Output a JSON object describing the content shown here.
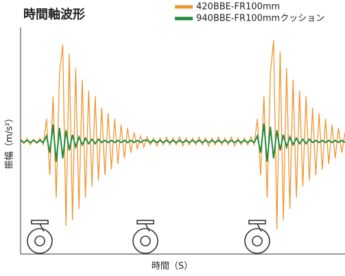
{
  "chart_data": {
    "type": "line",
    "title": "時間軸波形",
    "x_label": "時間（S）",
    "y_label": "振幅（m/s²）",
    "xlim": [
      0,
      100
    ],
    "ylim": [
      -10,
      10
    ],
    "legend": "top-right",
    "x": [
      0,
      1,
      2,
      3,
      4,
      5,
      6,
      7,
      8,
      9,
      10,
      11,
      12,
      13,
      14,
      15,
      16,
      17,
      18,
      19,
      20,
      21,
      22,
      23,
      24,
      25,
      26,
      27,
      28,
      29,
      30,
      31,
      32,
      33,
      34,
      35,
      36,
      37,
      38,
      39,
      40,
      41,
      42,
      43,
      44,
      45,
      46,
      47,
      48,
      49,
      50,
      51,
      52,
      53,
      54,
      55,
      56,
      57,
      58,
      59,
      60,
      61,
      62,
      63,
      64,
      65,
      66,
      67,
      68,
      69,
      70,
      71,
      72,
      73,
      74,
      75,
      76,
      77,
      78,
      79,
      80,
      81,
      82,
      83,
      84,
      85,
      86,
      87,
      88,
      89,
      90,
      91,
      92,
      93,
      94,
      95,
      96,
      97,
      98,
      99,
      100
    ],
    "series": [
      {
        "name": "420BBE-FR100mm",
        "color": "#ef9530",
        "values": [
          0.3,
          -0.2,
          0.3,
          -0.3,
          0.2,
          -0.2,
          0.3,
          -0.3,
          2,
          -3,
          4,
          -5,
          6,
          8.6,
          -7.5,
          7.8,
          -7,
          6.5,
          -6,
          5.5,
          -5,
          4.5,
          -4,
          4,
          -3.5,
          3,
          -3,
          2.5,
          -2.5,
          2,
          -2,
          1.5,
          -1.5,
          1.2,
          -1,
          0.8,
          -0.7,
          0.5,
          -0.5,
          0.4,
          -0.3,
          0.3,
          -0.4,
          0.3,
          -0.3,
          0.4,
          -0.3,
          0.3,
          -0.3,
          0.4,
          -0.4,
          0.3,
          -0.3,
          0.3,
          -0.3,
          0.4,
          -0.3,
          0.3,
          -0.4,
          0.3,
          -0.3,
          0.4,
          -0.3,
          0.3,
          -0.3,
          0.4,
          -0.4,
          0.3,
          -0.3,
          0.3,
          -0.3,
          0.4,
          -0.3,
          2,
          -3,
          4,
          -5,
          6,
          9,
          -7.8,
          8,
          -7,
          6.5,
          -6,
          5.5,
          -5,
          4.5,
          -4,
          4,
          -3.5,
          3,
          -3,
          2.5,
          -2.5,
          2,
          -2,
          1.5,
          -1.5,
          1.2,
          -1,
          0.8
        ]
      },
      {
        "name": "940BBE-FR100mmクッション",
        "color": "#1f8a3e",
        "values": [
          0.1,
          -0.1,
          0.1,
          -0.1,
          0.1,
          -0.1,
          0.1,
          -0.1,
          0.5,
          -1,
          1.5,
          -1.8,
          1.2,
          -1.5,
          1,
          -0.8,
          0.6,
          -0.5,
          0.4,
          -0.3,
          0.3,
          -0.2,
          0.2,
          -0.2,
          0.2,
          -0.1,
          0.1,
          -0.1,
          0.1,
          -0.1,
          0.1,
          -0.1,
          0.1,
          -0.1,
          0.1,
          -0.1,
          0.1,
          -0.1,
          0.1,
          0.1,
          -0.1,
          0.1,
          -0.1,
          0.1,
          -0.1,
          0.1,
          -0.1,
          0.1,
          -0.1,
          0.1,
          -0.1,
          0.1,
          -0.1,
          0.1,
          -0.1,
          0.1,
          -0.1,
          0.1,
          -0.1,
          0.1,
          -0.1,
          0.1,
          -0.1,
          0.1,
          -0.1,
          0.1,
          -0.1,
          0.1,
          -0.1,
          0.1,
          -0.1,
          0.1,
          -0.1,
          0.5,
          -1,
          1.6,
          -1.8,
          1.3,
          -1.5,
          1,
          -0.8,
          0.6,
          -0.5,
          0.4,
          -0.3,
          0.3,
          -0.2,
          0.2,
          -0.2,
          0.2,
          -0.1,
          0.1,
          -0.1,
          0.1,
          -0.1,
          0.1,
          -0.1,
          0.1,
          -0.1,
          0.1,
          -0.1
        ]
      }
    ]
  }
}
